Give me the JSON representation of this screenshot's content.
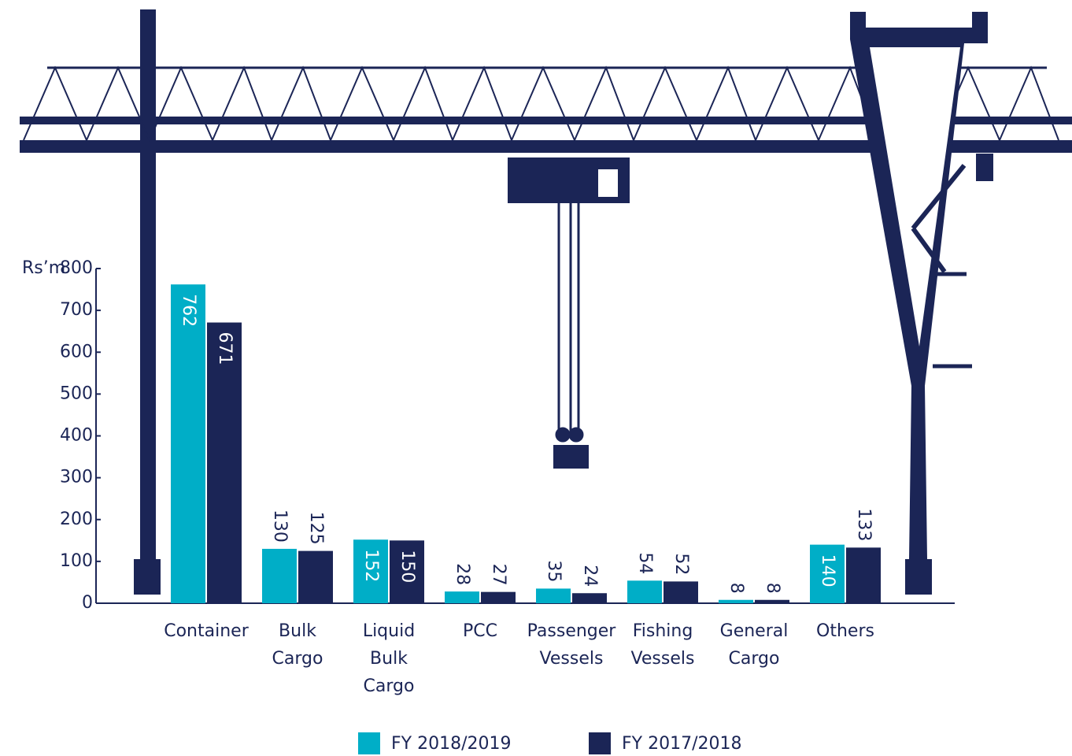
{
  "chart_data": {
    "type": "bar",
    "y_label": "Rs’m",
    "categories": [
      "Container",
      "Bulk\nCargo",
      "Liquid\nBulk\nCargo",
      "PCC",
      "Passenger\nVessels",
      "Fishing\nVessels",
      "General\nCargo",
      "Others"
    ],
    "series": [
      {
        "name": "FY 2018/2019",
        "color": "#00aec7",
        "values": [
          762,
          130,
          152,
          28,
          35,
          54,
          8,
          140
        ]
      },
      {
        "name": "FY 2017/2018",
        "color": "#1b2556",
        "values": [
          671,
          125,
          150,
          27,
          24,
          52,
          8,
          133
        ]
      }
    ],
    "ylim": [
      0,
      800
    ],
    "yticks": [
      0,
      100,
      200,
      300,
      400,
      500,
      600,
      700,
      800
    ]
  }
}
